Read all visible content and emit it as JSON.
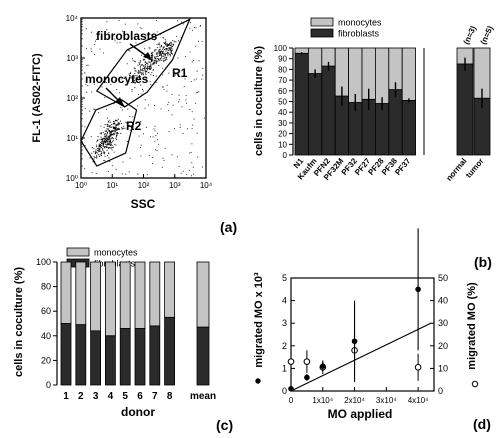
{
  "panel_labels": [
    "(a)",
    "(b)",
    "(c)",
    "(d)"
  ],
  "chart_data": [
    {
      "panel": "(a)",
      "type": "scatter",
      "xlabel": "SSC",
      "ylabel": "FL-1 (AS02-FITC)",
      "x_scale": "log",
      "y_scale": "log",
      "xlim": [
        1,
        10000
      ],
      "ylim": [
        1,
        10000
      ],
      "x_ticks": [
        "10⁰",
        "10¹",
        "10²",
        "10³",
        "10⁴"
      ],
      "y_ticks": [
        "10⁰",
        "10¹",
        "10²",
        "10³",
        "10⁴"
      ],
      "annotations": [
        "fibroblasts",
        "monocytes"
      ],
      "gates": [
        {
          "label": "R1",
          "polygon": [
            [
              3.2,
              150
            ],
            [
              30,
              1600
            ],
            [
              3000,
              9200
            ],
            [
              850,
              900
            ],
            [
              130,
              140
            ],
            [
              25,
              60
            ]
          ]
        },
        {
          "label": "R2",
          "polygon": [
            [
              1.0,
              8.5
            ],
            [
              3.0,
              50
            ],
            [
              20,
              90
            ],
            [
              60,
              50
            ],
            [
              27,
              4.2
            ],
            [
              3.2,
              2.0
            ]
          ]
        }
      ],
      "clusters": [
        {
          "name": "fibroblasts",
          "points": [
            [
              50,
              300
            ],
            [
              100,
              550
            ],
            [
              200,
              900
            ],
            [
              400,
              1400
            ],
            [
              800,
              2200
            ]
          ]
        },
        {
          "name": "monocytes",
          "points": [
            [
              3.5,
              4.5
            ],
            [
              5,
              7
            ],
            [
              7,
              10
            ],
            [
              10,
              15
            ],
            [
              14,
              22
            ]
          ]
        }
      ]
    },
    {
      "panel": "(b)",
      "type": "bar",
      "ylabel": "cells in coculture (%)",
      "ylim": [
        0,
        100
      ],
      "y_ticks": [
        0,
        10,
        20,
        30,
        40,
        50,
        60,
        70,
        80,
        90,
        100
      ],
      "legend": [
        "monocytes",
        "fibroblasts"
      ],
      "legend_position": "top",
      "categories": [
        "N1",
        "Kaufm",
        "PFN2",
        "PF32M",
        "PF32",
        "PF27",
        "PF28",
        "PF38",
        "PF37"
      ],
      "series": [
        {
          "name": "fibroblasts",
          "values": [
            95,
            76,
            83,
            55,
            49,
            52,
            48,
            61,
            51
          ]
        },
        {
          "name": "monocytes",
          "values": [
            5,
            24,
            17,
            45,
            51,
            48,
            52,
            39,
            49
          ]
        }
      ],
      "errors": [
        1,
        4,
        4,
        9,
        8,
        10,
        6,
        7,
        2
      ],
      "groups": [
        {
          "categories": [
            "normal",
            "tumor"
          ],
          "n_labels": [
            "(n=3)",
            "(n=5)"
          ],
          "series": [
            {
              "name": "fibroblasts",
              "values": [
                85,
                53
              ]
            },
            {
              "name": "monocytes",
              "values": [
                15,
                47
              ]
            }
          ],
          "errors": [
            6,
            9
          ]
        }
      ]
    },
    {
      "panel": "(c)",
      "type": "bar",
      "xlabel": "donor",
      "ylabel": "cells in coculture (%)",
      "ylim": [
        0,
        100
      ],
      "y_ticks": [
        0,
        20,
        40,
        60,
        80,
        100
      ],
      "legend": [
        "monocytes",
        "fibroblasts"
      ],
      "legend_position": "top",
      "categories": [
        "1",
        "2",
        "3",
        "4",
        "5",
        "6",
        "7",
        "8",
        "mean"
      ],
      "series": [
        {
          "name": "fibroblasts",
          "values": [
            50,
            49,
            44,
            40,
            46,
            46,
            48,
            55,
            47
          ]
        },
        {
          "name": "monocytes",
          "values": [
            50,
            51,
            56,
            60,
            54,
            54,
            52,
            45,
            53
          ]
        }
      ]
    },
    {
      "panel": "(d)",
      "type": "scatter",
      "xlabel": "MO applied",
      "ylabel": "migrated MO x 10³",
      "y2label": "migrated MO (%)",
      "xlim": [
        0,
        45000
      ],
      "ylim": [
        0,
        5
      ],
      "y2lim": [
        0,
        50
      ],
      "x_ticks": [
        "0",
        "1x10⁴",
        "2x10⁴",
        "3x10⁴",
        "4x10⁴"
      ],
      "y_ticks": [
        0,
        1,
        2,
        3,
        4,
        5
      ],
      "y2_ticks": [
        0,
        10,
        20,
        30,
        40,
        50
      ],
      "legend_markers": [
        "filled circle",
        "open circle"
      ],
      "points_filled": [
        {
          "x": 0,
          "y": 0.1,
          "err": 0.05
        },
        {
          "x": 5000,
          "y": 0.6,
          "err": 0.15
        },
        {
          "x": 10000,
          "y": 1.1,
          "err": 0.2
        },
        {
          "x": 20000,
          "y": 2.2,
          "err": 1.8
        },
        {
          "x": 40000,
          "y": 4.5,
          "err": 2.7
        }
      ],
      "points_open": [
        {
          "x": 0,
          "y2": 13,
          "err": 3
        },
        {
          "x": 5000,
          "y2": 13,
          "err": 5
        },
        {
          "x": 10000,
          "y2": 10.5,
          "err": 3
        },
        {
          "x": 20000,
          "y2": 18,
          "err": 8
        },
        {
          "x": 40000,
          "y2": 10.5,
          "err": 6
        }
      ],
      "fit_line": [
        [
          0,
          0.0
        ],
        [
          44000,
          3.0
        ]
      ]
    }
  ]
}
